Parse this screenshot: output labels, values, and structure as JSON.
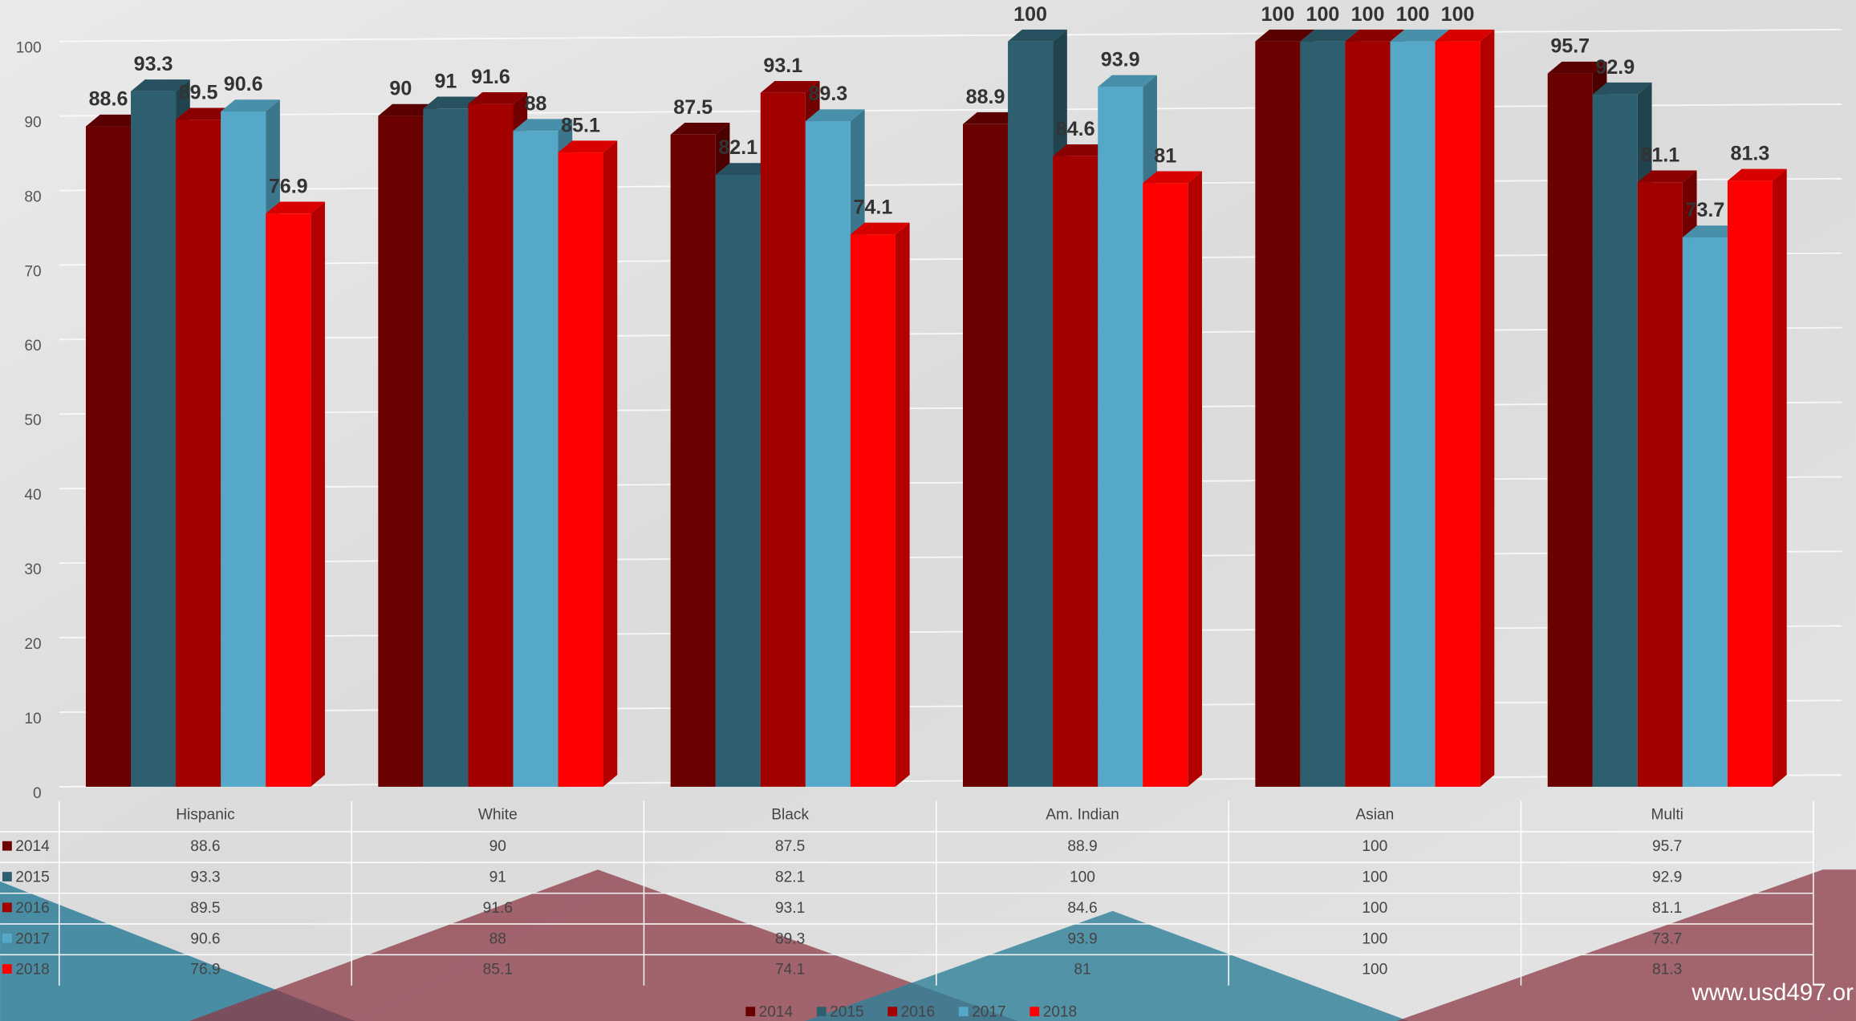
{
  "chart_data": {
    "type": "bar3d",
    "categories": [
      "Hispanic",
      "White",
      "Black",
      "Am. Indian",
      "Asian",
      "Multi"
    ],
    "series": [
      {
        "name": "2014",
        "color": "#6b0000",
        "values": [
          88.6,
          90,
          87.5,
          88.9,
          100,
          95.7
        ]
      },
      {
        "name": "2015",
        "color": "#2e5f70",
        "values": [
          93.3,
          91,
          82.1,
          100,
          100,
          92.9
        ]
      },
      {
        "name": "2016",
        "color": "#a30000",
        "values": [
          89.5,
          91.6,
          93.1,
          84.6,
          100,
          81.1
        ]
      },
      {
        "name": "2017",
        "color": "#55a8c8",
        "values": [
          90.6,
          88,
          89.3,
          93.9,
          100,
          73.7
        ]
      },
      {
        "name": "2018",
        "color": "#ff0000",
        "values": [
          76.9,
          85.1,
          74.1,
          81,
          100,
          81.3
        ]
      }
    ],
    "ylim": [
      0,
      100
    ],
    "yticks": [
      0,
      10,
      20,
      30,
      40,
      50,
      60,
      70,
      80,
      90,
      100
    ],
    "grid": true,
    "data_table": true,
    "legend": "bottom",
    "footer": "www.usd497.or"
  }
}
